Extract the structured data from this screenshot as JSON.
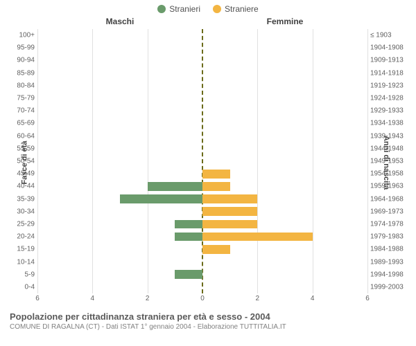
{
  "legend": {
    "male": {
      "label": "Stranieri",
      "color": "#6a9b6b"
    },
    "female": {
      "label": "Straniere",
      "color": "#f3b542"
    }
  },
  "chart": {
    "type": "population-pyramid",
    "panel_title_left": "Maschi",
    "panel_title_right": "Femmine",
    "y_label_left": "Fasce di età",
    "y_label_right": "Anni di nascita",
    "x_max": 6,
    "x_ticks": [
      6,
      4,
      2,
      0,
      2,
      4,
      6
    ],
    "grid_color": "#e0e0e0",
    "center_line_color": "#6b6b1a",
    "background_color": "#ffffff",
    "label_fontsize": 10,
    "rows": [
      {
        "age": "100+",
        "birth": "≤ 1903",
        "m": 0,
        "f": 0
      },
      {
        "age": "95-99",
        "birth": "1904-1908",
        "m": 0,
        "f": 0
      },
      {
        "age": "90-94",
        "birth": "1909-1913",
        "m": 0,
        "f": 0
      },
      {
        "age": "85-89",
        "birth": "1914-1918",
        "m": 0,
        "f": 0
      },
      {
        "age": "80-84",
        "birth": "1919-1923",
        "m": 0,
        "f": 0
      },
      {
        "age": "75-79",
        "birth": "1924-1928",
        "m": 0,
        "f": 0
      },
      {
        "age": "70-74",
        "birth": "1929-1933",
        "m": 0,
        "f": 0
      },
      {
        "age": "65-69",
        "birth": "1934-1938",
        "m": 0,
        "f": 0
      },
      {
        "age": "60-64",
        "birth": "1939-1943",
        "m": 0,
        "f": 0
      },
      {
        "age": "55-59",
        "birth": "1944-1948",
        "m": 0,
        "f": 0
      },
      {
        "age": "50-54",
        "birth": "1949-1953",
        "m": 0,
        "f": 0
      },
      {
        "age": "45-49",
        "birth": "1954-1958",
        "m": 0,
        "f": 1
      },
      {
        "age": "40-44",
        "birth": "1959-1963",
        "m": 2,
        "f": 1
      },
      {
        "age": "35-39",
        "birth": "1964-1968",
        "m": 3,
        "f": 2
      },
      {
        "age": "30-34",
        "birth": "1969-1973",
        "m": 0,
        "f": 2
      },
      {
        "age": "25-29",
        "birth": "1974-1978",
        "m": 1,
        "f": 2
      },
      {
        "age": "20-24",
        "birth": "1979-1983",
        "m": 1,
        "f": 4
      },
      {
        "age": "15-19",
        "birth": "1984-1988",
        "m": 0,
        "f": 1
      },
      {
        "age": "10-14",
        "birth": "1989-1993",
        "m": 0,
        "f": 0
      },
      {
        "age": "5-9",
        "birth": "1994-1998",
        "m": 1,
        "f": 0
      },
      {
        "age": "0-4",
        "birth": "1999-2003",
        "m": 0,
        "f": 0
      }
    ]
  },
  "footer": {
    "title": "Popolazione per cittadinanza straniera per età e sesso - 2004",
    "subtitle": "COMUNE DI RAGALNA (CT) - Dati ISTAT 1° gennaio 2004 - Elaborazione TUTTITALIA.IT"
  }
}
